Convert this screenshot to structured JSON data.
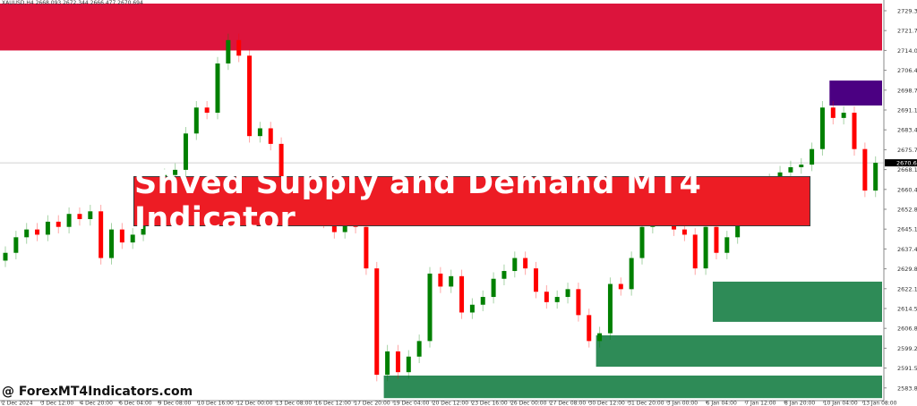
{
  "header": {
    "symbol_info": "XAUUSD,H4  2668.093 2672.344 2666.477 2670.694"
  },
  "banner": {
    "title": "Shved Supply and Demand MT4 Indicator"
  },
  "watermark": {
    "text": "@ ForexMT4Indicators.com"
  },
  "colors": {
    "bull": "#008000",
    "bear": "#FF0000",
    "supply_strong": "#DC143C",
    "supply_weak": "#4B0082",
    "demand": "#2E8B57",
    "banner": "#ED1C24"
  },
  "chart_data": {
    "type": "candlestick",
    "title": "",
    "ylim": [
      2580,
      2733
    ],
    "y_ticks": [
      "2729.320",
      "2721.730",
      "2714.025",
      "2706.435",
      "2698.730",
      "2691.140",
      "2683.435",
      "2675.730",
      "2668.140",
      "2660.435",
      "2652.845",
      "2645.140",
      "2637.435",
      "2629.845",
      "2622.140",
      "2614.550",
      "2606.845",
      "2599.255",
      "2591.550",
      "2583.845"
    ],
    "x_ticks": [
      "2 Dec 2024",
      "3 Dec 12:00",
      "4 Dec 20:00",
      "6 Dec 04:00",
      "9 Dec 08:00",
      "10 Dec 16:00",
      "12 Dec 00:00",
      "13 Dec 08:00",
      "16 Dec 12:00",
      "17 Dec 20:00",
      "19 Dec 04:00",
      "20 Dec 12:00",
      "23 Dec 16:00",
      "26 Dec 00:00",
      "27 Dec 08:00",
      "30 Dec 12:00",
      "31 Dec 20:00",
      "3 Jan 00:00",
      "6 Jan 04:00",
      "7 Jan 12:00",
      "8 Jan 20:00",
      "10 Jan 04:00",
      "13 Jan 08:00"
    ],
    "current_price": "2670.694",
    "closes": [
      2636,
      2642,
      2645,
      2643,
      2648,
      2646,
      2651,
      2649,
      2652,
      2634,
      2645,
      2640,
      2643,
      2652,
      2662,
      2666,
      2668,
      2682,
      2692,
      2690,
      2709,
      2718,
      2712,
      2681,
      2684,
      2678,
      2660,
      2655,
      2650,
      2652,
      2648,
      2644,
      2648,
      2646,
      2630,
      2589,
      2598,
      2590,
      2596,
      2602,
      2628,
      2623,
      2627,
      2613,
      2616,
      2619,
      2626,
      2629,
      2634,
      2630,
      2621,
      2617,
      2619,
      2622,
      2612,
      2602,
      2605,
      2624,
      2622,
      2634,
      2646,
      2652,
      2656,
      2645,
      2643,
      2630,
      2646,
      2636,
      2642,
      2650,
      2656,
      2660,
      2664,
      2667,
      2669,
      2670,
      2676,
      2692,
      2688,
      2690,
      2676,
      2660,
      2670.7
    ],
    "zones": [
      {
        "kind": "supply",
        "strength": "strong",
        "high": 2733,
        "low": 2714,
        "start_index": 0
      },
      {
        "kind": "supply",
        "strength": "weak",
        "high": 2702.4,
        "low": 2692.8,
        "start_index": 78
      },
      {
        "kind": "demand",
        "high": 2624.9,
        "low": 2609.4,
        "start_index": 67
      },
      {
        "kind": "demand",
        "high": 2604.2,
        "low": 2592.1,
        "start_index": 56
      },
      {
        "kind": "demand",
        "high": 2588.7,
        "low": 2580,
        "start_index": 36
      }
    ]
  }
}
